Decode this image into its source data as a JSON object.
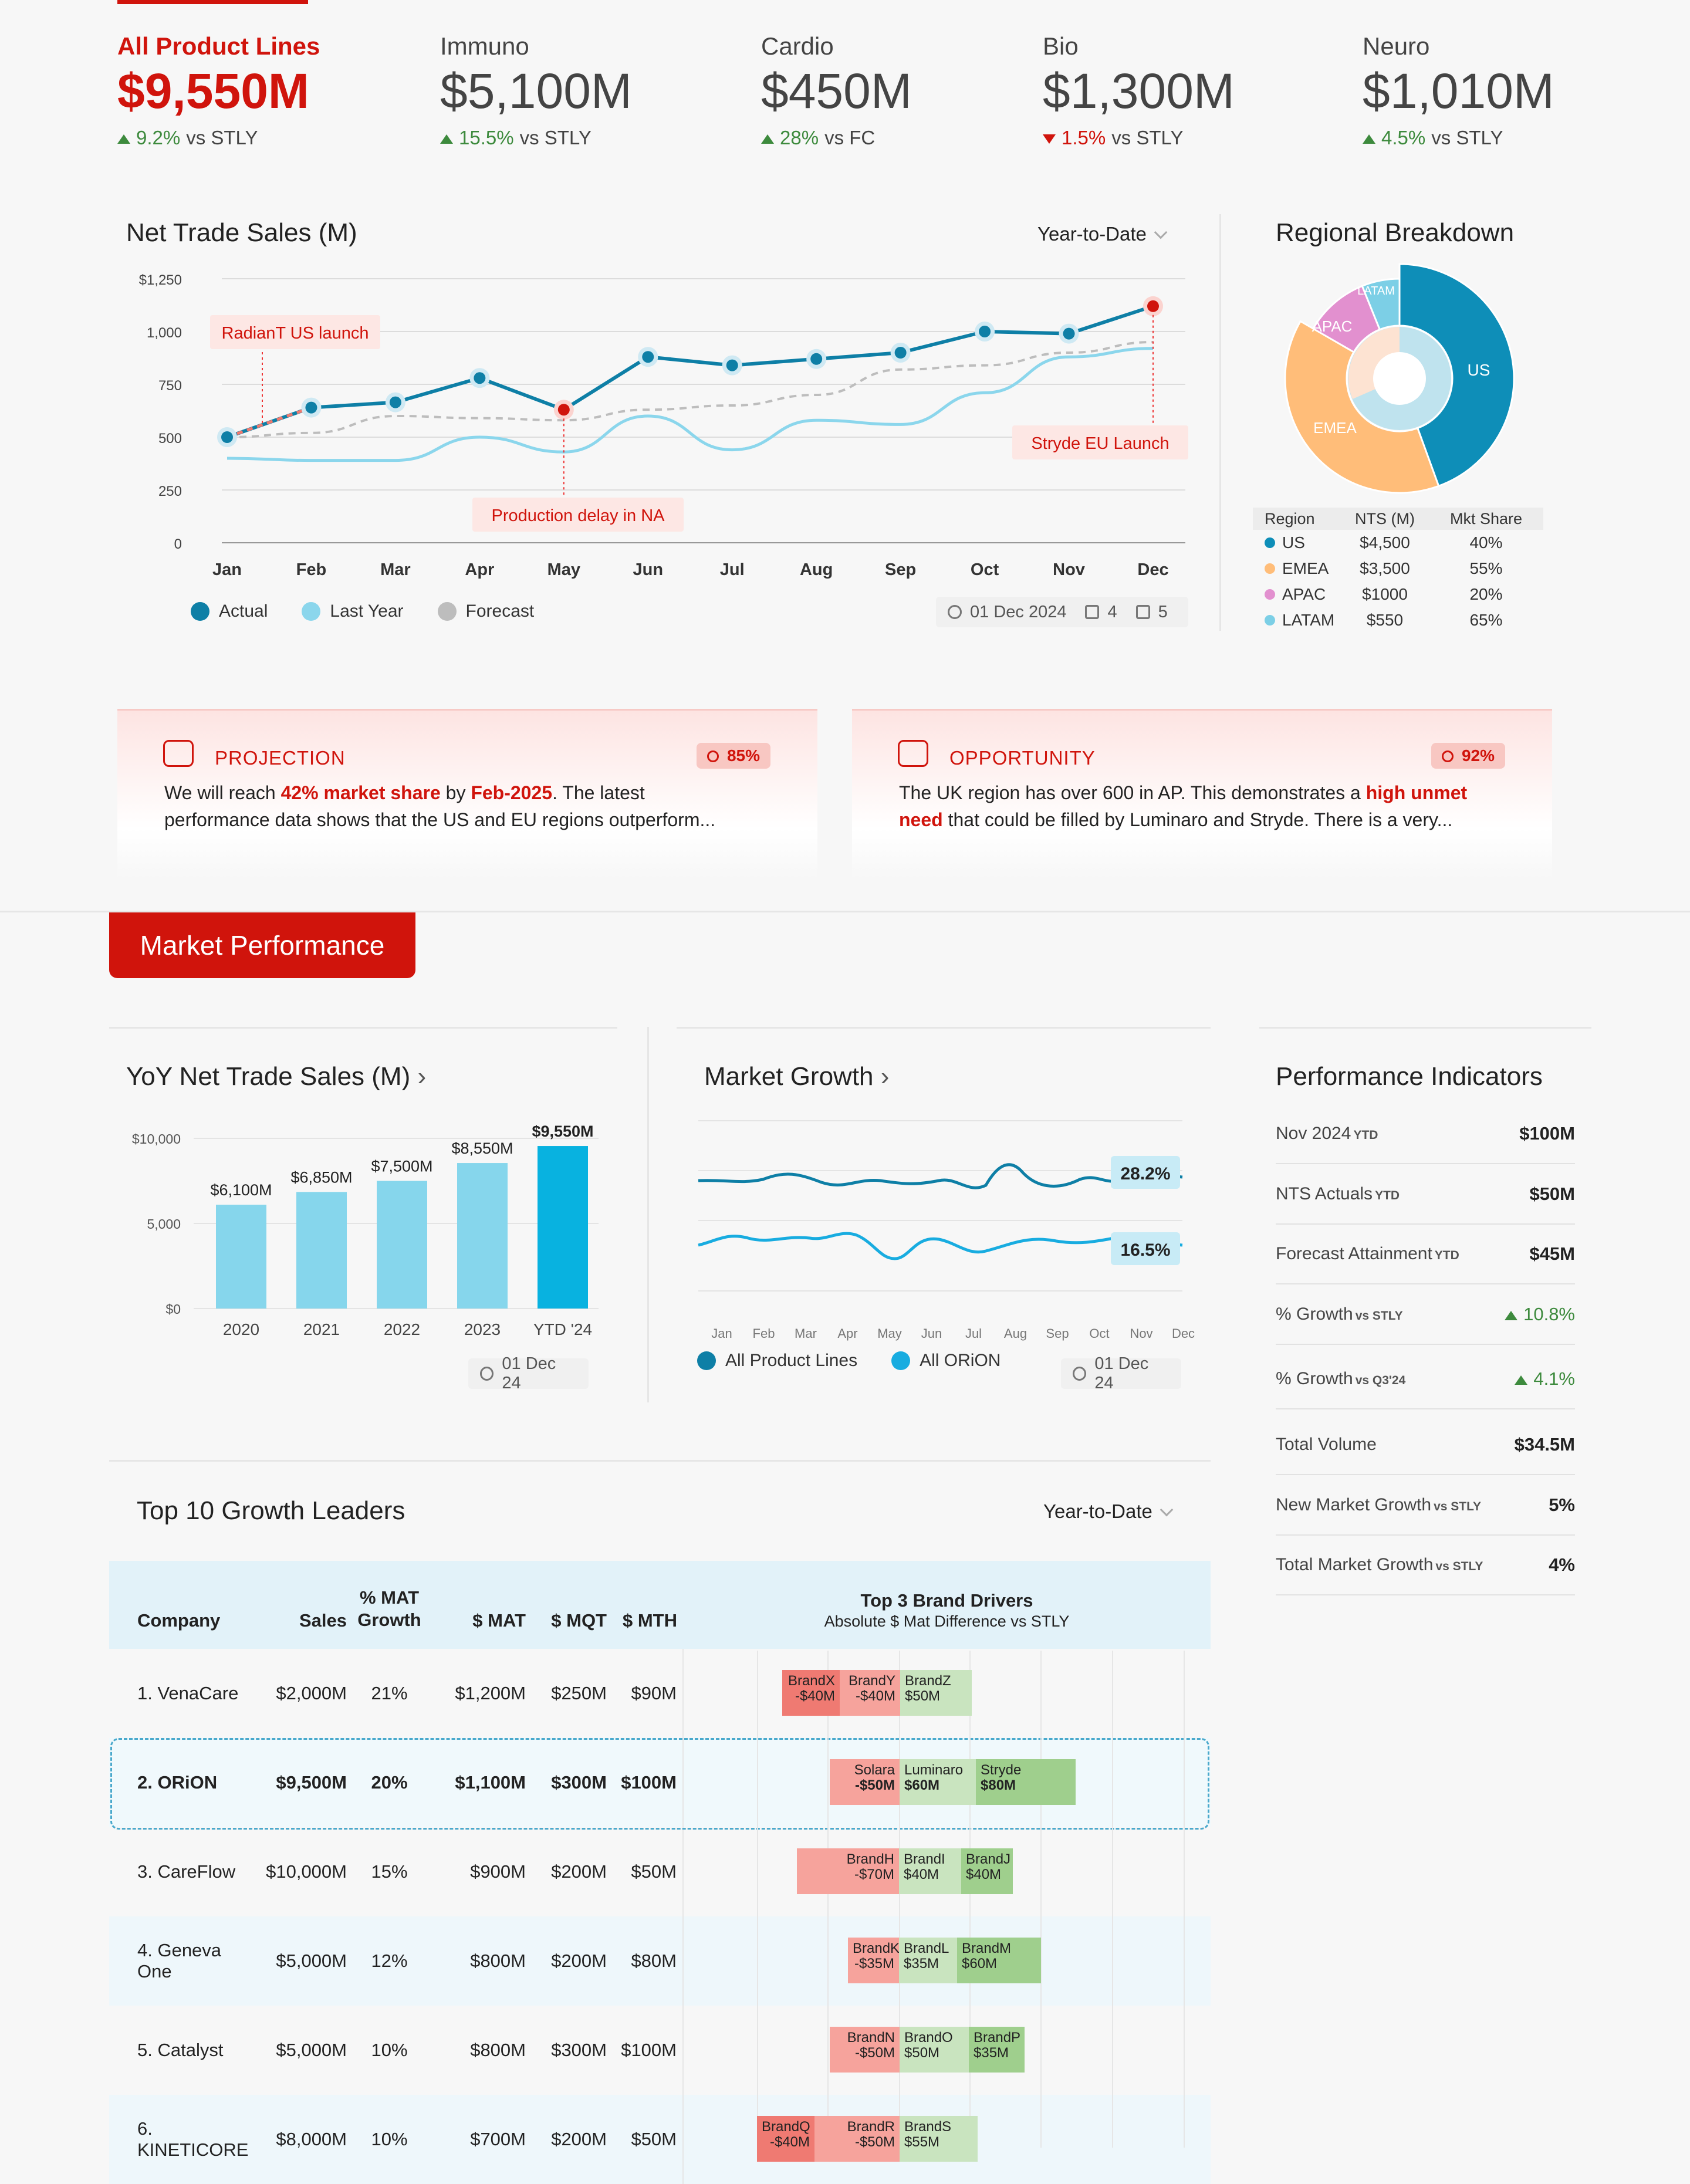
{
  "kpis": [
    {
      "label": "All Product Lines",
      "value": "$9,550M",
      "delta": "9.2%",
      "suffix": "vs STLY",
      "dir": "up"
    },
    {
      "label": "Immuno",
      "value": "$5,100M",
      "delta": "15.5%",
      "suffix": "vs STLY",
      "dir": "up"
    },
    {
      "label": "Cardio",
      "value": "$450M",
      "delta": "28%",
      "suffix": "vs FC",
      "dir": "up"
    },
    {
      "label": "Bio",
      "value": "$1,300M",
      "delta": "1.5%",
      "suffix": "vs STLY",
      "dir": "down"
    },
    {
      "label": "Neuro",
      "value": "$1,010M",
      "delta": "4.5%",
      "suffix": "vs STLY",
      "dir": "up"
    }
  ],
  "nts": {
    "title": "Net Trade Sales (M)",
    "period": "Year-to-Date",
    "annotations": {
      "a1": "RadianT US launch",
      "a2": "Production delay in NA",
      "a3": "Stryde EU Launch"
    },
    "legend": {
      "actual": "Actual",
      "last_year": "Last Year",
      "forecast": "Forecast"
    },
    "meta": {
      "date": "01 Dec 2024",
      "sources": "4",
      "comments": "5"
    },
    "yticks": [
      "$1,250",
      "1,000",
      "750",
      "500",
      "250",
      "0"
    ],
    "chart_data": {
      "type": "line",
      "categories": [
        "Jan",
        "Feb",
        "Mar",
        "Apr",
        "May",
        "Jun",
        "Jul",
        "Aug",
        "Sep",
        "Oct",
        "Nov",
        "Dec"
      ],
      "ylim": [
        0,
        1250
      ],
      "series": [
        {
          "name": "Actual",
          "values": [
            500,
            640,
            665,
            780,
            630,
            880,
            840,
            870,
            900,
            1000,
            990,
            1120
          ]
        },
        {
          "name": "Last Year",
          "values": [
            400,
            390,
            390,
            500,
            430,
            600,
            440,
            580,
            560,
            710,
            880,
            920
          ]
        },
        {
          "name": "Forecast",
          "values": [
            500,
            520,
            600,
            590,
            580,
            630,
            650,
            700,
            820,
            840,
            900,
            950
          ]
        }
      ]
    }
  },
  "regional": {
    "title": "Regional Breakdown",
    "headers": [
      "Region",
      "NTS (M)",
      "Mkt Share"
    ],
    "rows": [
      {
        "region": "US",
        "nts": "$4,500",
        "share": "40%",
        "color": "#0e8eb8"
      },
      {
        "region": "EMEA",
        "nts": "$3,500",
        "share": "55%",
        "color": "#ffbd79"
      },
      {
        "region": "APAC",
        "nts": "$1000",
        "share": "20%",
        "color": "#e290cf"
      },
      {
        "region": "LATAM",
        "nts": "$550",
        "share": "65%",
        "color": "#7ccfe6"
      }
    ]
  },
  "insights": [
    {
      "title": "PROJECTION",
      "conf": "85%",
      "t1": "We will reach ",
      "h1": "42% market share",
      "t2": " by ",
      "h2": "Feb-2025",
      "t3": ". The latest",
      "line2": "performance data shows that the US and EU regions outperform..."
    },
    {
      "title": "OPPORTUNITY",
      "conf": "92%",
      "t1": "The UK region has over 600 in AP. This demonstrates a ",
      "h1": "high unmet",
      "h2": "need",
      "t3": " that could be filled by Luminaro and Stryde. There is a very..."
    }
  ],
  "section": {
    "market_performance": "Market Performance"
  },
  "yoy": {
    "title": "YoY Net Trade Sales (M)",
    "date": "01 Dec 24",
    "yticks": [
      "$10,000",
      "5,000",
      "$0"
    ],
    "chart_data": {
      "type": "bar",
      "categories": [
        "2020",
        "2021",
        "2022",
        "2023",
        "YTD '24"
      ],
      "values": [
        6100,
        6850,
        7500,
        8550,
        9550
      ],
      "labels": [
        "$6,100M",
        "$6,850M",
        "$7,500M",
        "$8,550M",
        "$9,550M"
      ],
      "ylim": [
        0,
        10000
      ]
    }
  },
  "growth": {
    "title": "Market Growth",
    "date": "01 Dec 24",
    "end1": "28.2%",
    "end2": "16.5%",
    "legend": {
      "all": "All Product Lines",
      "orion": "All ORiON"
    },
    "months": [
      "Jan",
      "Feb",
      "Mar",
      "Apr",
      "May",
      "Jun",
      "Jul",
      "Aug",
      "Sep",
      "Oct",
      "Nov",
      "Dec"
    ]
  },
  "pi": {
    "title": "Performance Indicators",
    "rows": [
      {
        "label": "Nov 2024",
        "sub": "YTD",
        "value": "$100M"
      },
      {
        "label": "NTS Actuals",
        "sub": "YTD",
        "value": "$50M"
      },
      {
        "label": "Forecast Attainment",
        "sub": "YTD",
        "value": "$45M"
      },
      {
        "label": "% Growth",
        "sub": "vs STLY",
        "value": "10.8%",
        "up": true
      },
      {
        "label": "% Growth",
        "sub": "vs Q3'24",
        "value": "4.1%",
        "up": true
      },
      {
        "label": "Total Volume",
        "sub": "",
        "value": "$34.5M"
      },
      {
        "label": "New Market Growth",
        "sub": "vs STLY",
        "value": "5%"
      },
      {
        "label": "Total Market Growth",
        "sub": "vs STLY",
        "value": "4%"
      }
    ]
  },
  "leaders": {
    "title": "Top 10 Growth Leaders",
    "period": "Year-to-Date",
    "headers": {
      "company": "Company",
      "sales": "Sales",
      "mat1": "% MAT",
      "mat2": "Growth",
      "smat": "$ MAT",
      "smqt": "$ MQT",
      "smth": "$ MTH",
      "drivers": "Top 3 Brand Drivers",
      "drivers_sub": "Absolute $ Mat Difference vs STLY"
    },
    "rows": [
      {
        "company": "1. VenaCare",
        "sales": "$2,000M",
        "mat": "21%",
        "smat": "$1,200M",
        "smqt": "$250M",
        "smth": "$90M"
      },
      {
        "company": "2. ORiON",
        "sales": "$9,500M",
        "mat": "20%",
        "smat": "$1,100M",
        "smqt": "$300M",
        "smth": "$100M"
      },
      {
        "company": "3. CareFlow",
        "sales": "$10,000M",
        "mat": "15%",
        "smat": "$900M",
        "smqt": "$200M",
        "smth": "$50M"
      },
      {
        "company": "4. Geneva One",
        "sales": "$5,000M",
        "mat": "12%",
        "smat": "$800M",
        "smqt": "$200M",
        "smth": "$80M"
      },
      {
        "company": "5. Catalyst",
        "sales": "$5,000M",
        "mat": "10%",
        "smat": "$800M",
        "smqt": "$300M",
        "smth": "$100M"
      },
      {
        "company": "6. KINETICORE",
        "sales": "$8,000M",
        "mat": "10%",
        "smat": "$700M",
        "smqt": "$200M",
        "smth": "$50M"
      }
    ],
    "brands": [
      [
        {
          "n": "BrandX",
          "v": "-$40M"
        },
        {
          "n": "BrandY",
          "v": "-$40M"
        },
        {
          "n": "BrandZ",
          "v": "$50M"
        }
      ],
      [
        {
          "n": "Solara",
          "v": "-$50M"
        },
        {
          "n": "Luminaro",
          "v": "$60M"
        },
        {
          "n": "Stryde",
          "v": "$80M"
        }
      ],
      [
        {
          "n": "BrandH",
          "v": "-$70M"
        },
        {
          "n": "BrandI",
          "v": "$40M"
        },
        {
          "n": "BrandJ",
          "v": "$40M"
        }
      ],
      [
        {
          "n": "BrandK",
          "v": "-$35M"
        },
        {
          "n": "BrandL",
          "v": "$35M"
        },
        {
          "n": "BrandM",
          "v": "$60M"
        }
      ],
      [
        {
          "n": "BrandN",
          "v": "-$50M"
        },
        {
          "n": "BrandO",
          "v": "$50M"
        },
        {
          "n": "BrandP",
          "v": "$35M"
        }
      ],
      [
        {
          "n": "BrandQ",
          "v": "-$40M"
        },
        {
          "n": "BrandR",
          "v": "-$50M"
        },
        {
          "n": "BrandS",
          "v": "$55M"
        }
      ]
    ]
  }
}
